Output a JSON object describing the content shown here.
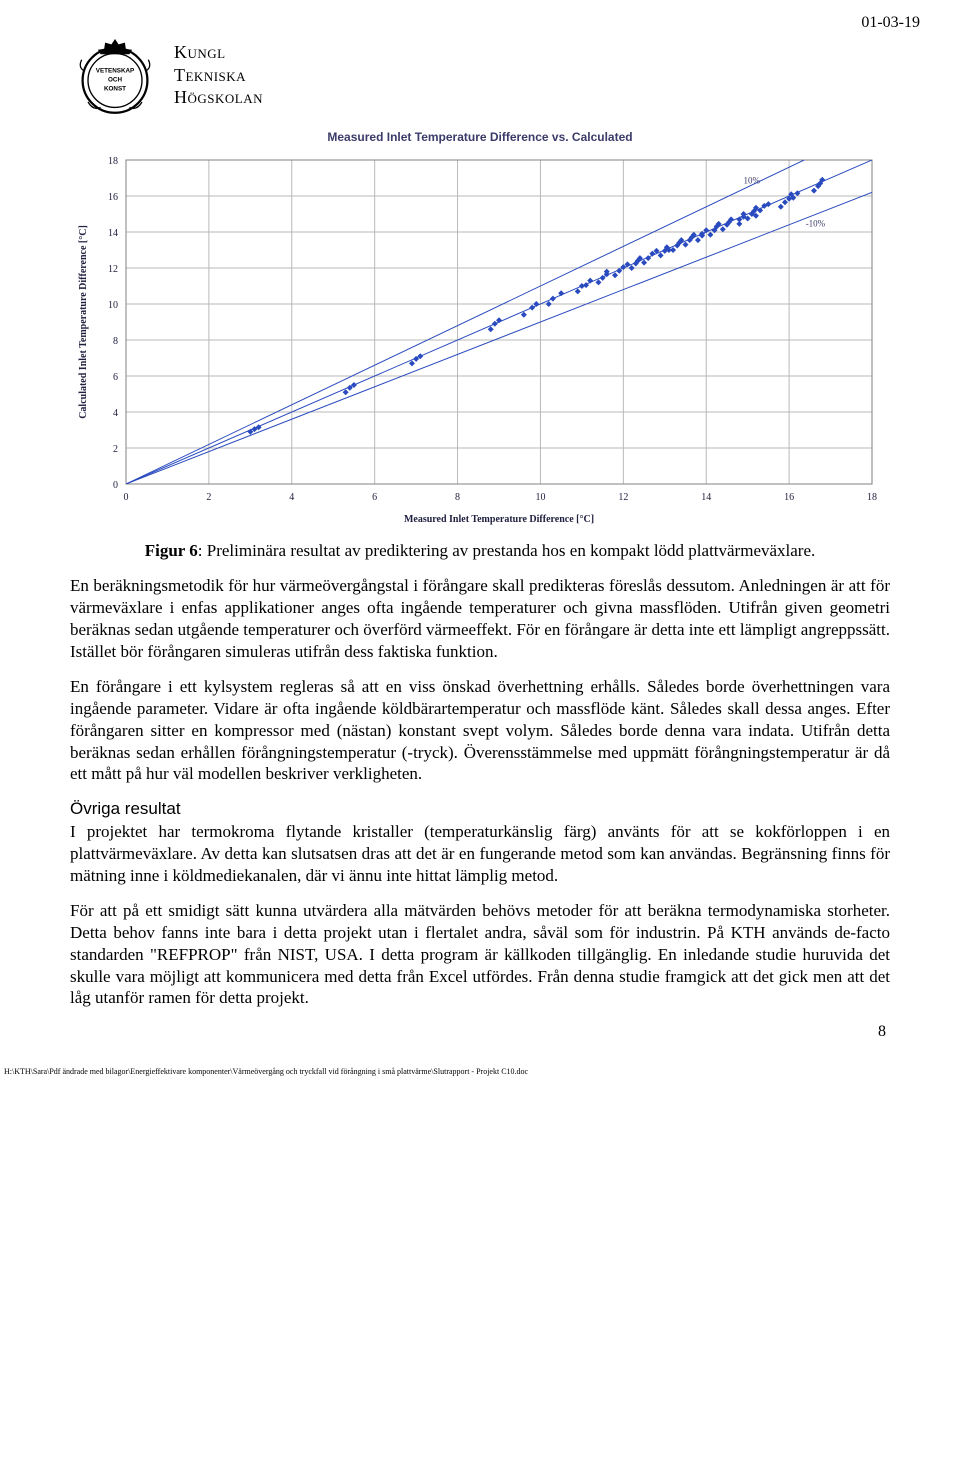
{
  "header": {
    "date": "01-03-19",
    "institution_line1": "Kungl",
    "institution_line2": "Tekniska",
    "institution_line3": "Högskolan",
    "emblem_text1": "VETENSKAP",
    "emblem_text2": "OCH",
    "emblem_text3": "KONST"
  },
  "chart": {
    "type": "scatter",
    "title": "Measured Inlet Temperature Difference vs. Calculated",
    "xlabel": "Measured Inlet Temperature Difference [°C]",
    "ylabel": "Calculated Inlet Temperature Difference [°C]",
    "title_color": "#3b3b6a",
    "title_fontsize": 12,
    "axis_label_fontsize": 10,
    "tick_fontsize": 10,
    "tick_color": "#202040",
    "xlim": [
      0,
      18
    ],
    "ylim": [
      0,
      18
    ],
    "xtick_step": 2,
    "ytick_step": 2,
    "plot_bg": "#ffffff",
    "grid_color": "#b8b8b8",
    "border_color": "#808080",
    "marker_color": "#2a4bbf",
    "marker_size": 3,
    "marker_shape": "diamond",
    "ref_line_color": "#2a4bbf",
    "ref_line_width": 1,
    "tol_line_color": "#2a4bbf",
    "tol_label_plus": "10%",
    "tol_label_minus": "-10%",
    "tol_label_color": "#3b3b6a",
    "ref_line": [
      [
        0,
        0
      ],
      [
        18,
        18
      ]
    ],
    "tol_plus_line": [
      [
        0,
        0
      ],
      [
        18,
        19.8
      ]
    ],
    "tol_minus_line": [
      [
        0,
        0
      ],
      [
        18,
        16.2
      ]
    ],
    "points": [
      [
        3.0,
        2.9
      ],
      [
        3.1,
        3.05
      ],
      [
        3.2,
        3.15
      ],
      [
        5.3,
        5.1
      ],
      [
        5.4,
        5.35
      ],
      [
        5.5,
        5.5
      ],
      [
        6.9,
        6.7
      ],
      [
        7.0,
        6.95
      ],
      [
        7.1,
        7.1
      ],
      [
        8.8,
        8.6
      ],
      [
        8.9,
        8.9
      ],
      [
        9.0,
        9.1
      ],
      [
        9.6,
        9.4
      ],
      [
        9.8,
        9.8
      ],
      [
        9.9,
        10.0
      ],
      [
        10.2,
        10.0
      ],
      [
        10.3,
        10.3
      ],
      [
        10.5,
        10.6
      ],
      [
        10.9,
        10.7
      ],
      [
        11.0,
        11.0
      ],
      [
        11.1,
        11.05
      ],
      [
        11.2,
        11.3
      ],
      [
        11.4,
        11.2
      ],
      [
        11.5,
        11.45
      ],
      [
        11.6,
        11.65
      ],
      [
        11.6,
        11.8
      ],
      [
        11.8,
        11.6
      ],
      [
        11.9,
        11.85
      ],
      [
        12.0,
        12.05
      ],
      [
        12.1,
        12.2
      ],
      [
        12.2,
        12.0
      ],
      [
        12.3,
        12.25
      ],
      [
        12.35,
        12.4
      ],
      [
        12.4,
        12.55
      ],
      [
        12.5,
        12.3
      ],
      [
        12.6,
        12.55
      ],
      [
        12.7,
        12.8
      ],
      [
        12.8,
        12.95
      ],
      [
        12.9,
        12.7
      ],
      [
        13.0,
        12.95
      ],
      [
        13.05,
        13.15
      ],
      [
        13.1,
        13.0
      ],
      [
        13.2,
        13.0
      ],
      [
        13.3,
        13.25
      ],
      [
        13.35,
        13.4
      ],
      [
        13.4,
        13.55
      ],
      [
        13.5,
        13.3
      ],
      [
        13.6,
        13.55
      ],
      [
        13.65,
        13.7
      ],
      [
        13.7,
        13.85
      ],
      [
        13.8,
        13.55
      ],
      [
        13.9,
        13.8
      ],
      [
        13.9,
        13.9
      ],
      [
        14.0,
        14.1
      ],
      [
        14.1,
        13.85
      ],
      [
        14.2,
        14.1
      ],
      [
        14.25,
        14.3
      ],
      [
        14.3,
        14.45
      ],
      [
        14.4,
        14.15
      ],
      [
        14.5,
        14.4
      ],
      [
        14.55,
        14.55
      ],
      [
        14.6,
        14.7
      ],
      [
        14.8,
        14.45
      ],
      [
        14.8,
        14.7
      ],
      [
        14.9,
        14.85
      ],
      [
        14.9,
        15.0
      ],
      [
        15.0,
        14.75
      ],
      [
        15.1,
        15.0
      ],
      [
        15.15,
        15.15
      ],
      [
        15.2,
        15.35
      ],
      [
        15.2,
        14.9
      ],
      [
        15.3,
        15.2
      ],
      [
        15.4,
        15.45
      ],
      [
        15.5,
        15.55
      ],
      [
        15.8,
        15.4
      ],
      [
        15.9,
        15.65
      ],
      [
        16.0,
        15.85
      ],
      [
        16.05,
        16.1
      ],
      [
        16.1,
        15.9
      ],
      [
        16.2,
        16.15
      ],
      [
        16.6,
        16.3
      ],
      [
        16.7,
        16.55
      ],
      [
        16.75,
        16.7
      ],
      [
        16.8,
        16.9
      ]
    ]
  },
  "caption_label": "Figur 6",
  "caption_text": ": Preliminära resultat av prediktering av prestanda hos en kompakt lödd plattvärmeväxlare.",
  "paragraphs": {
    "p1": "En beräkningsmetodik för hur värmeövergångstal i förångare skall predikteras föreslås dessutom. Anledningen är att för värmeväxlare i enfas applikationer anges ofta ingående temperaturer och givna massflöden. Utifrån given geometri beräknas sedan utgående temperaturer och överförd värmeeffekt. För en förångare är detta inte ett lämpligt angreppssätt. Istället bör förångaren simuleras utifrån dess faktiska funktion.",
    "p2": "En förångare i ett kylsystem regleras så att en viss önskad överhettning erhålls. Således borde överhettningen vara ingående parameter. Vidare är ofta ingående köldbärartemperatur och massflöde känt. Således skall dessa anges. Efter förångaren sitter en kompressor med (nästan) konstant svept volym. Således borde denna vara indata. Utifrån detta beräknas sedan erhållen förångningstemperatur (-tryck). Överensstämmelse med uppmätt förångningstemperatur är då ett mått på hur väl modellen beskriver verkligheten.",
    "subhead": "Övriga resultat",
    "p3": "I projektet har termokroma flytande kristaller (temperaturkänslig färg) använts för att se kokförloppen i en plattvärmeväxlare. Av detta kan slutsatsen dras att det är en fungerande metod som kan användas. Begränsning finns för mätning inne i köldmediekanalen, där vi ännu inte hittat lämplig metod.",
    "p4": "För att på ett smidigt sätt kunna utvärdera alla mätvärden behövs metoder för att beräkna termodynamiska storheter. Detta behov fanns inte bara i detta projekt utan i flertalet andra, såväl som för industrin. På KTH används de-facto standarden \"REFPROP\" från NIST, USA. I detta program är källkoden tillgänglig. En inledande studie huruvida det skulle vara möjligt att kommunicera med detta från Excel utfördes. Från denna studie framgick att det gick men att det låg utanför ramen för detta projekt."
  },
  "page_number": "8",
  "footer": "H:\\KTH\\Sara\\Pdf ändrade med bilagor\\Energieffektivare komponenter\\Värmeövergång och tryckfall vid förångning i små plattvärme\\Slutrapport - Projekt C10.doc"
}
